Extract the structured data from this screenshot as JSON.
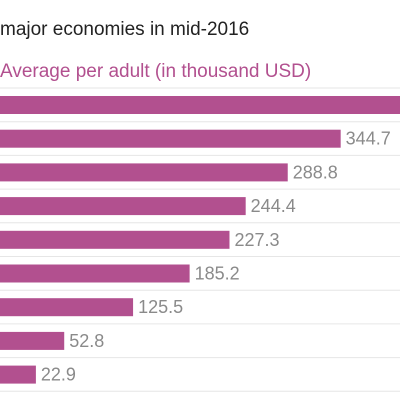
{
  "colors": {
    "bar": "#b2508f",
    "title": "#222222",
    "subtitle": "#b2508f",
    "value_label": "#8a8a8a",
    "grid": "#e6e6e6"
  },
  "chart_data": {
    "type": "bar",
    "orientation": "horizontal",
    "title": "major economies in mid-2016",
    "subtitle": "Average per adult (in thousand USD)",
    "xlabel": "",
    "ylabel": "",
    "series": [
      {
        "values": [
          408,
          344.7,
          288.8,
          244.4,
          227.3,
          185.2,
          125.5,
          52.8,
          22.9
        ],
        "labels": [
          "",
          "344.7",
          "288.8",
          "244.4",
          "227.3",
          "185.2",
          "125.5",
          "52.8",
          "22.9"
        ]
      }
    ],
    "xlim": [
      -15,
      420
    ],
    "grid": true,
    "legend": "none"
  }
}
